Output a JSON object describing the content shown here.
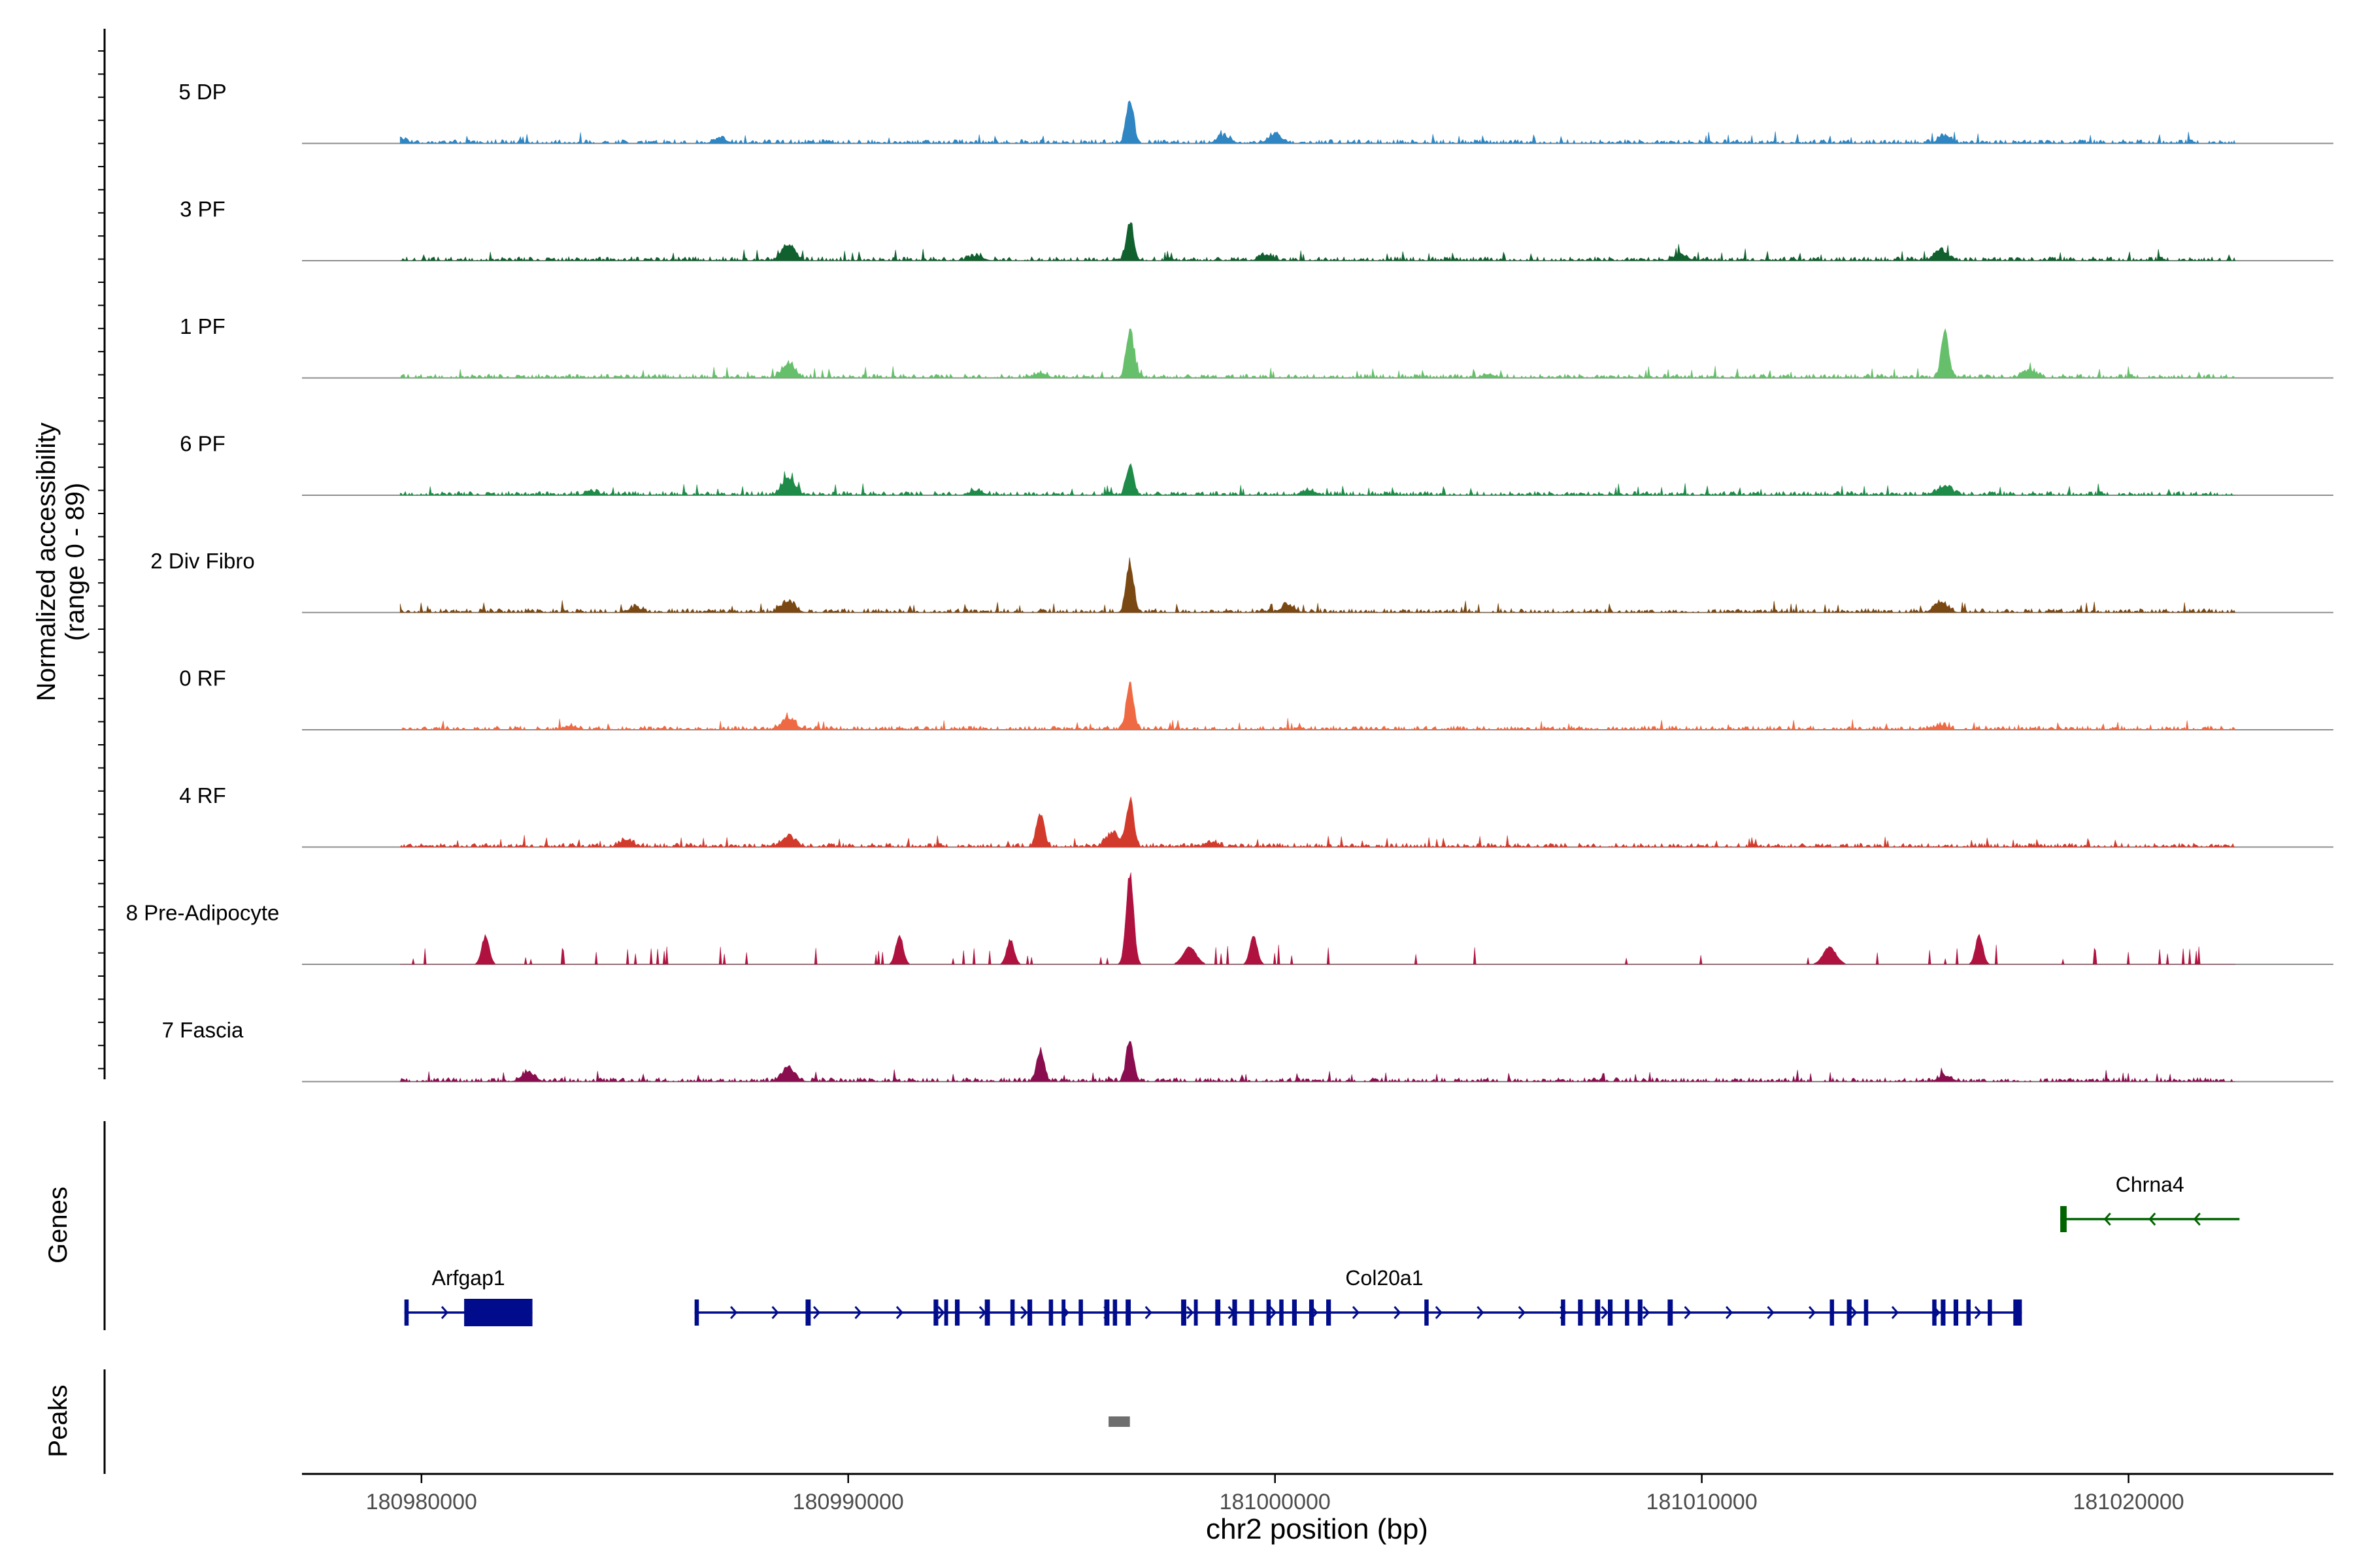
{
  "chart_data": {
    "type": "area",
    "title": "",
    "ylabel_line1": "Normalized accessibility",
    "ylabel_line2": "(range 0 - 89)",
    "xlabel": "chr2 position (bp)",
    "xlim": [
      180977200,
      181024800
    ],
    "x_ticks": [
      180980000,
      180990000,
      181000000,
      181010000,
      181020000
    ],
    "x_tick_labels": [
      "180980000",
      "180990000",
      "181000000",
      "181010000",
      "181020000"
    ],
    "ylim": [
      0,
      89
    ],
    "tracks": [
      {
        "name": "5 DP",
        "color": "#2F86C2",
        "start": 180979500,
        "end": 181022500,
        "peaks": [
          [
            180996600,
            38
          ],
          [
            180998800,
            6
          ],
          [
            181000000,
            8
          ],
          [
            181015700,
            6
          ],
          [
            180987000,
            4
          ],
          [
            180979500,
            4
          ]
        ]
      },
      {
        "name": "3 PF",
        "color": "#11612F",
        "start": 180979500,
        "end": 181022500,
        "peaks": [
          [
            180996600,
            32
          ],
          [
            180988600,
            14
          ],
          [
            181015600,
            9
          ],
          [
            180999800,
            5
          ],
          [
            181009500,
            5
          ],
          [
            180993000,
            4
          ]
        ]
      },
      {
        "name": "1 PF",
        "color": "#66BF6B",
        "start": 180979500,
        "end": 181022500,
        "peaks": [
          [
            180996600,
            42
          ],
          [
            181015700,
            40
          ],
          [
            180988600,
            12
          ],
          [
            181017700,
            6
          ],
          [
            180994500,
            4
          ],
          [
            181005000,
            3
          ]
        ]
      },
      {
        "name": "6 PF",
        "color": "#1E8B48",
        "start": 180979500,
        "end": 181022500,
        "peaks": [
          [
            180996600,
            26
          ],
          [
            180988600,
            15
          ],
          [
            181015700,
            8
          ],
          [
            180993000,
            4
          ],
          [
            181000800,
            4
          ],
          [
            180984000,
            3
          ]
        ]
      },
      {
        "name": "2 Div Fibro",
        "color": "#7A4812",
        "start": 180979500,
        "end": 181022500,
        "peaks": [
          [
            180996600,
            44
          ],
          [
            180988600,
            9
          ],
          [
            181015600,
            9
          ],
          [
            181000300,
            6
          ],
          [
            180985000,
            4
          ]
        ]
      },
      {
        "name": "0 RF",
        "color": "#EF6A42",
        "start": 180979500,
        "end": 181022500,
        "peaks": [
          [
            180996600,
            38
          ],
          [
            180988600,
            10
          ],
          [
            181015600,
            4
          ],
          [
            180983500,
            3
          ]
        ]
      },
      {
        "name": "4 RF",
        "color": "#D23B2C",
        "start": 180979500,
        "end": 181022500,
        "peaks": [
          [
            180994500,
            30
          ],
          [
            180996600,
            40
          ],
          [
            180996200,
            12
          ],
          [
            180988600,
            9
          ],
          [
            180984800,
            6
          ],
          [
            180998500,
            4
          ]
        ]
      },
      {
        "name": "8 Pre-Adipocyte",
        "color": "#B0123F",
        "start": 180979500,
        "end": 181022500,
        "peaks": [
          [
            180996600,
            80
          ],
          [
            180991200,
            25
          ],
          [
            180981500,
            25
          ],
          [
            180999500,
            25
          ],
          [
            180993800,
            22
          ],
          [
            181016500,
            25
          ],
          [
            180998000,
            15
          ],
          [
            181013000,
            15
          ]
        ]
      },
      {
        "name": "7 Fascia",
        "color": "#8A0E4F",
        "start": 180979500,
        "end": 181022500,
        "peaks": [
          [
            180996600,
            36
          ],
          [
            180994500,
            26
          ],
          [
            180988600,
            12
          ],
          [
            180982500,
            8
          ],
          [
            181015700,
            5
          ]
        ]
      }
    ],
    "genes_label": "Genes",
    "genes": [
      {
        "name": "Arfgap1",
        "start": 180979600,
        "end": 180982600,
        "strand": "+",
        "color": "#000C8B",
        "exons": [
          [
            180979600,
            180979700
          ],
          [
            180981000,
            180982600
          ]
        ]
      },
      {
        "name": "Col20a1",
        "start": 180986400,
        "end": 181017500,
        "strand": "+",
        "color": "#000C8B",
        "exons": [
          [
            180986400,
            180986500
          ],
          [
            180989000,
            180989120
          ],
          [
            180992000,
            180992110
          ],
          [
            180992250,
            180992340
          ],
          [
            180992500,
            180992610
          ],
          [
            180993200,
            180993320
          ],
          [
            180993800,
            180993900
          ],
          [
            180994200,
            180994310
          ],
          [
            180994700,
            180994800
          ],
          [
            180995000,
            180995090
          ],
          [
            180995400,
            180995500
          ],
          [
            180996000,
            180996120
          ],
          [
            180996200,
            180996300
          ],
          [
            180996500,
            180996620
          ],
          [
            180997800,
            180997920
          ],
          [
            180998100,
            180998190
          ],
          [
            180998600,
            180998720
          ],
          [
            180999000,
            180999110
          ],
          [
            180999400,
            180999510
          ],
          [
            180999800,
            180999900
          ],
          [
            181000100,
            181000200
          ],
          [
            181000400,
            181000510
          ],
          [
            181000800,
            181000910
          ],
          [
            181001200,
            181001310
          ],
          [
            181003500,
            181003600
          ],
          [
            181006700,
            181006800
          ],
          [
            181007100,
            181007210
          ],
          [
            181007500,
            181007620
          ],
          [
            181007800,
            181007910
          ],
          [
            181008200,
            181008300
          ],
          [
            181008500,
            181008610
          ],
          [
            181009200,
            181009320
          ],
          [
            181013000,
            181013100
          ],
          [
            181013400,
            181013510
          ],
          [
            181013800,
            181013900
          ],
          [
            181015400,
            181015500
          ],
          [
            181015600,
            181015710
          ],
          [
            181015900,
            181016010
          ],
          [
            181016200,
            181016300
          ],
          [
            181016700,
            181016800
          ],
          [
            181017300,
            181017500
          ]
        ]
      },
      {
        "name": "Chrna4",
        "start": 181018400,
        "end": 181022600,
        "strand": "-",
        "color": "#006400",
        "exons": [
          [
            181018400,
            181018550
          ]
        ]
      }
    ],
    "peaks_label": "Peaks",
    "peak_regions": [
      [
        180996100,
        180996600
      ]
    ],
    "peak_color": "#6E6E6E"
  }
}
